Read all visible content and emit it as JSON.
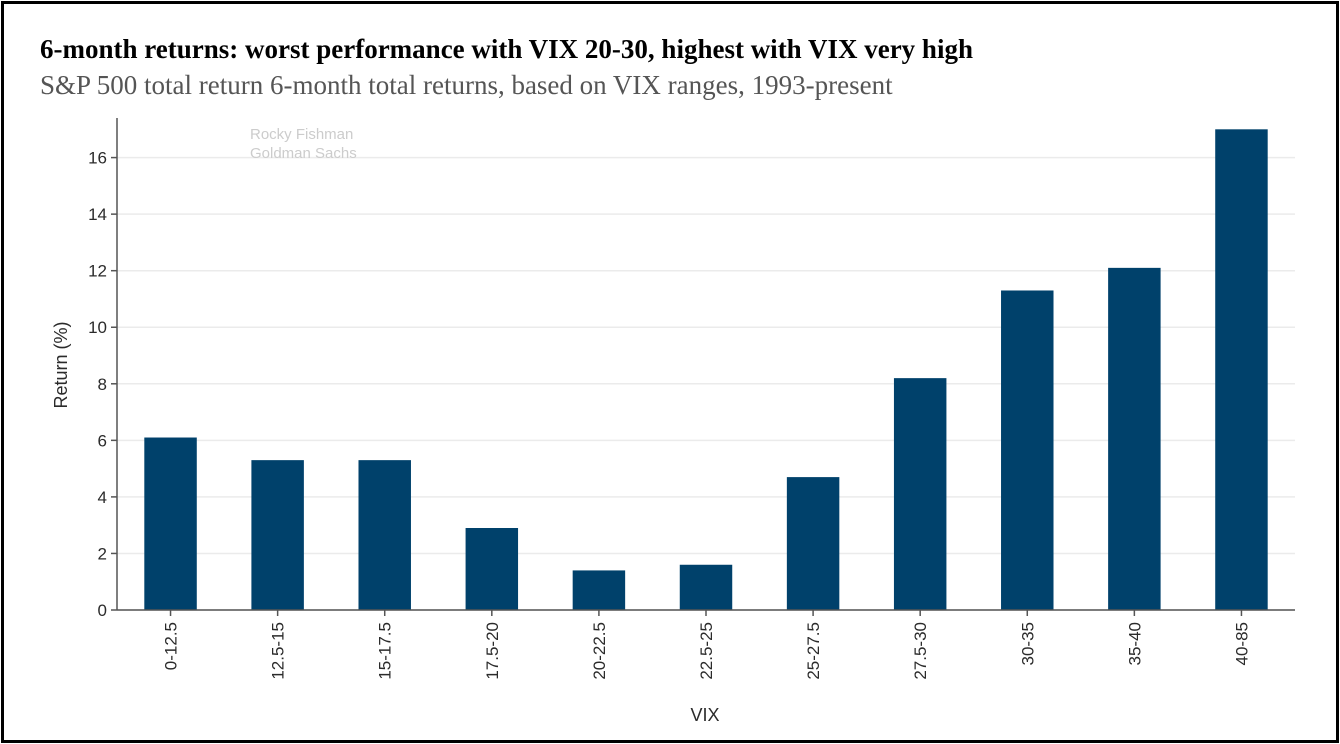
{
  "header": {
    "title": "6-month returns: worst performance with VIX 20-30, highest with VIX very high",
    "subtitle": "S&P 500 total return 6-month total returns, based on VIX ranges, 1993-present"
  },
  "watermark": {
    "line1": "Rocky Fishman",
    "line2": "Goldman Sachs"
  },
  "colors": {
    "bar": "#00416b",
    "grid": "#ebebeb",
    "axis": "#555555"
  },
  "chart_data": {
    "type": "bar",
    "title": "6-month returns: worst performance with VIX 20-30, highest with VIX very high",
    "subtitle": "S&P 500 total return 6-month total returns, based on VIX ranges, 1993-present",
    "xlabel": "VIX",
    "ylabel": "Return (%)",
    "categories": [
      "0-12.5",
      "12.5-15",
      "15-17.5",
      "17.5-20",
      "20-22.5",
      "22.5-25",
      "25-27.5",
      "27.5-30",
      "30-35",
      "35-40",
      "40-85"
    ],
    "values": [
      6.1,
      5.3,
      5.3,
      2.9,
      1.4,
      1.6,
      4.7,
      8.2,
      11.3,
      12.1,
      17.0
    ],
    "ylim": [
      0,
      17.4
    ],
    "yticks": [
      0,
      2,
      4,
      6,
      8,
      10,
      12,
      14,
      16
    ],
    "grid": true,
    "legend": "none"
  }
}
